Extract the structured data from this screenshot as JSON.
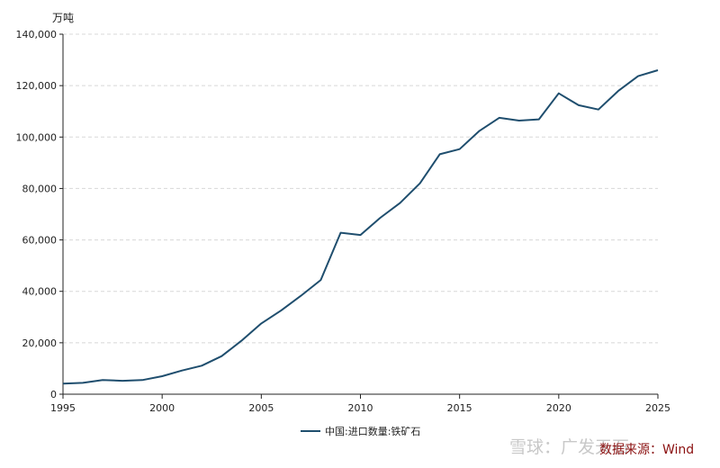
{
  "chart_data": {
    "type": "line",
    "unit_label": "万吨",
    "x": [
      1995,
      1996,
      1997,
      1998,
      1999,
      2000,
      2001,
      2002,
      2003,
      2004,
      2005,
      2006,
      2007,
      2008,
      2009,
      2010,
      2011,
      2012,
      2013,
      2014,
      2015,
      2016,
      2017,
      2018,
      2019,
      2020,
      2021,
      2022,
      2023,
      2024,
      2025
    ],
    "series": [
      {
        "name": "中国:进口数量:铁矿石",
        "color": "#1f4e6e",
        "values": [
          4100,
          4400,
          5500,
          5200,
          5500,
          7000,
          9200,
          11100,
          14800,
          20800,
          27500,
          32600,
          38300,
          44400,
          62800,
          61900,
          68600,
          74400,
          82000,
          93300,
          95300,
          102400,
          107500,
          106400,
          106900,
          117000,
          112400,
          110700,
          117900,
          123700,
          126000
        ]
      }
    ],
    "xlim": [
      1995,
      2025
    ],
    "ylim": [
      0,
      140000
    ],
    "x_ticks": [
      "1995",
      "2000",
      "2005",
      "2010",
      "2015",
      "2020",
      "2025"
    ],
    "y_ticks": [
      "0",
      "20,000",
      "40,000",
      "60,000",
      "80,000",
      "100,000",
      "120,000",
      "140,000"
    ],
    "grid": "horizontal dashed",
    "legend_position": "bottom-center"
  },
  "watermark": "雪球：广发天石",
  "source": "数据来源：Wind"
}
